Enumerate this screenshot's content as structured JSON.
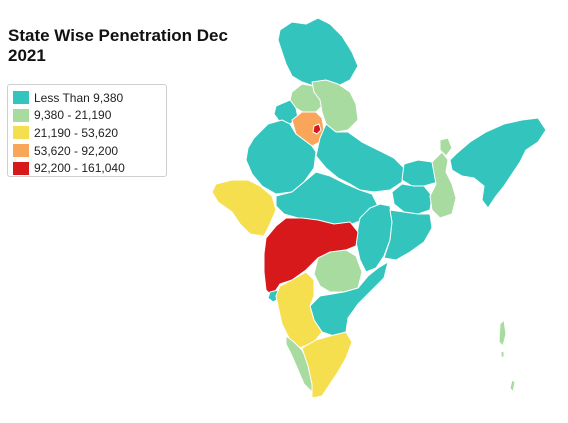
{
  "title": "State Wise Penetration Dec 2021",
  "colors": {
    "less_than_9380": "#33c5bd",
    "from_9380_to_21190": "#a8dba0",
    "from_21190_to_53620": "#f6df4e",
    "from_53620_to_92200": "#f9a65a",
    "from_92200_to_161040": "#d7191c",
    "border": "#ffffff"
  },
  "legend": {
    "items": [
      {
        "label": "Less Than 9,380",
        "color": "#33c5bd"
      },
      {
        "label": "9,380 - 21,190",
        "color": "#a8dba0"
      },
      {
        "label": "21,190 - 53,620",
        "color": "#f6df4e"
      },
      {
        "label": "53,620 - 92,200",
        "color": "#f9a65a"
      },
      {
        "label": "92,200 - 161,040",
        "color": "#d7191c"
      }
    ]
  }
}
